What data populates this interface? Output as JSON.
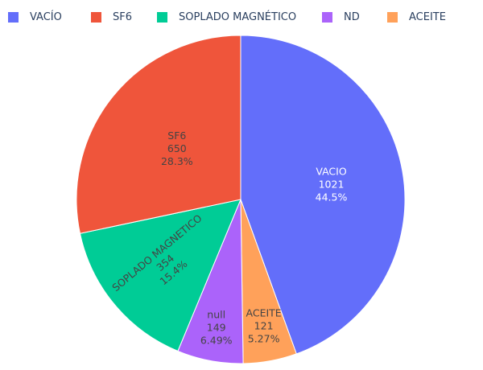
{
  "chart_data": {
    "type": "pie",
    "title": "",
    "legend_position": "top",
    "categories": [
      "VACÍO",
      "SF6",
      "SOPLADO MAGNÉTICO",
      "ND",
      "ACEITE"
    ],
    "slices": [
      {
        "legend": "VACÍO",
        "label": "VACIO",
        "value": 1021,
        "percent": "44.5%",
        "color": "#636efa"
      },
      {
        "legend": "ACEITE",
        "label": "ACEITE",
        "value": 121,
        "percent": "5.27%",
        "color": "#ffa15a"
      },
      {
        "legend": "ND",
        "label": "null",
        "value": 149,
        "percent": "6.49%",
        "color": "#ab63fa"
      },
      {
        "legend": "SOPLADO MAGNÉTICO",
        "label": "SOPLADO MAGNETICO",
        "value": 354,
        "percent": "15.4%",
        "color": "#00cc96"
      },
      {
        "legend": "SF6",
        "label": "SF6",
        "value": 650,
        "percent": "28.3%",
        "color": "#ef553b"
      }
    ],
    "legend": [
      {
        "label": "VACÍO",
        "color": "#636efa"
      },
      {
        "label": "SF6",
        "color": "#ef553b"
      },
      {
        "label": "SOPLADO MAGNÉTICO",
        "color": "#00cc96"
      },
      {
        "label": "ND",
        "color": "#ab63fa"
      },
      {
        "label": "ACEITE",
        "color": "#ffa15a"
      }
    ]
  }
}
